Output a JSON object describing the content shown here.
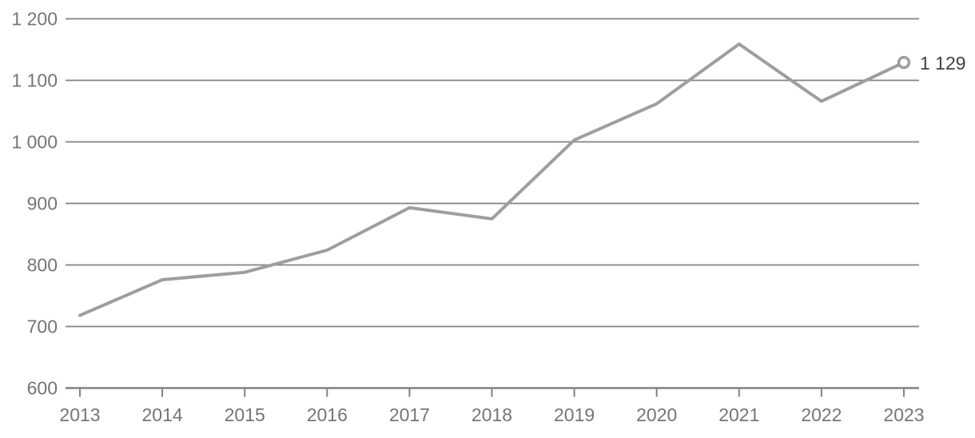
{
  "chart_data": {
    "type": "line",
    "title": "",
    "xlabel": "",
    "ylabel": "",
    "x": [
      2013,
      2014,
      2015,
      2016,
      2017,
      2018,
      2019,
      2020,
      2021,
      2022,
      2023
    ],
    "values": [
      718,
      776,
      788,
      824,
      893,
      875,
      1003,
      1062,
      1159,
      1066,
      1129
    ],
    "x_tick_labels": [
      "2013",
      "2014",
      "2015",
      "2016",
      "2017",
      "2018",
      "2019",
      "2020",
      "2021",
      "2022",
      "2023"
    ],
    "y_ticks": [
      600,
      700,
      800,
      900,
      1000,
      1100,
      1200
    ],
    "y_tick_labels": [
      "600",
      "700",
      "800",
      "900",
      "1 000",
      "1 100",
      "1 200"
    ],
    "ylim": [
      600,
      1200
    ],
    "grid": true,
    "legend": false,
    "last_point_label": "1 129",
    "last_point_marker": "open-circle",
    "colors": {
      "line": "#9e9e9e",
      "grid": "#828282",
      "axis": "#828282",
      "tick_label": "#757575",
      "end_label": "#424242",
      "marker_fill": "#ffffff",
      "marker_stroke": "#9e9e9e",
      "background": "#ffffff"
    }
  }
}
